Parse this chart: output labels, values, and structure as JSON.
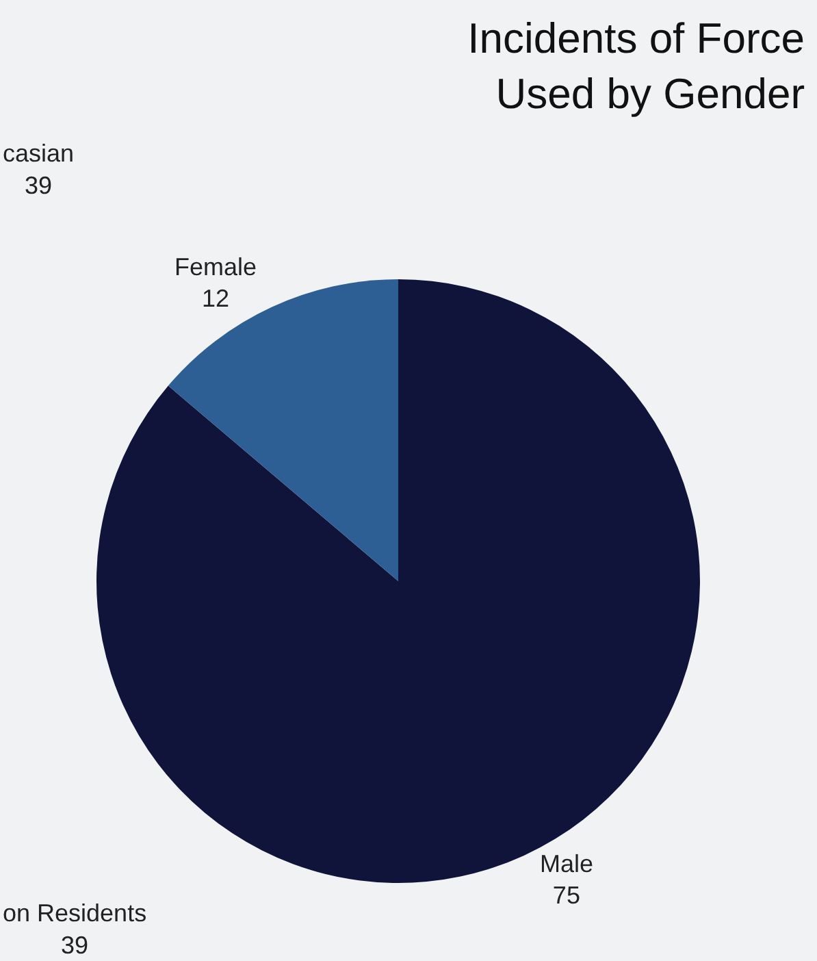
{
  "chart_data": {
    "type": "pie",
    "title": "Incidents of Force\nUsed by Gender",
    "categories": [
      "Male",
      "Female"
    ],
    "values": [
      75,
      12
    ],
    "colors": [
      "#11143a",
      "#2e5f94"
    ],
    "data_labels": true,
    "legend": false,
    "annotations": [
      "casian\n39",
      "on Residents\n39"
    ]
  }
}
